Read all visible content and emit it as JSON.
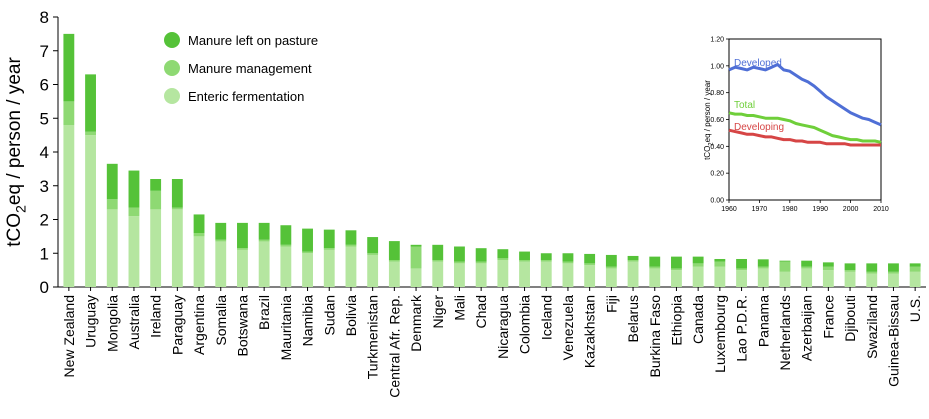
{
  "chart_data": [
    {
      "type": "bar",
      "stacked": true,
      "ylabel_main": "tCO",
      "ylabel_sub": "2",
      "ylabel_rest": "eq / person / year",
      "ylim": [
        0,
        8
      ],
      "yticks": [
        "0",
        "1",
        "2",
        "3",
        "4",
        "5",
        "6",
        "7",
        "8"
      ],
      "legend_position": "top-left",
      "categories": [
        "New Zealand",
        "Uruguay",
        "Mongolia",
        "Australia",
        "Ireland",
        "Paraguay",
        "Argentina",
        "Somalia",
        "Botswana",
        "Brazil",
        "Mauritania",
        "Namibia",
        "Sudan",
        "Bolivia",
        "Turkmenistan",
        "Central Afr. Rep.",
        "Denmark",
        "Niger",
        "Mali",
        "Chad",
        "Nicaragua",
        "Colombia",
        "Iceland",
        "Venezuela",
        "Kazakhstan",
        "Fiji",
        "Belarus",
        "Burkina Faso",
        "Ethiopia",
        "Canada",
        "Luxembourg",
        "Lao P.D.R.",
        "Panama",
        "Netherlands",
        "Azerbaijan",
        "France",
        "Djibouti",
        "Swaziland",
        "Guinea-Bissau",
        "U.S."
      ],
      "series": [
        {
          "name": "Enteric fermentation",
          "color": "#b5e6a0",
          "values": [
            4.8,
            4.5,
            2.3,
            2.1,
            2.3,
            2.3,
            1.5,
            1.35,
            1.1,
            1.35,
            1.2,
            1.0,
            1.1,
            1.2,
            0.95,
            0.75,
            0.55,
            0.75,
            0.7,
            0.7,
            0.8,
            0.75,
            0.75,
            0.7,
            0.65,
            0.55,
            0.75,
            0.55,
            0.5,
            0.6,
            0.6,
            0.5,
            0.55,
            0.45,
            0.55,
            0.5,
            0.45,
            0.4,
            0.4,
            0.45
          ]
        },
        {
          "name": "Manure management",
          "color": "#8ed973",
          "values": [
            0.7,
            0.1,
            0.3,
            0.25,
            0.55,
            0.05,
            0.1,
            0.05,
            0.05,
            0.05,
            0.05,
            0.05,
            0.05,
            0.05,
            0.05,
            0.05,
            0.65,
            0.05,
            0.05,
            0.05,
            0.05,
            0.05,
            0.05,
            0.05,
            0.05,
            0.05,
            0.05,
            0.05,
            0.05,
            0.1,
            0.15,
            0.05,
            0.05,
            0.3,
            0.05,
            0.1,
            0.05,
            0.05,
            0.05,
            0.15
          ]
        },
        {
          "name": "Manure left on pasture",
          "color": "#55c238",
          "values": [
            2.0,
            1.7,
            1.05,
            1.1,
            0.35,
            0.85,
            0.55,
            0.5,
            0.75,
            0.5,
            0.58,
            0.68,
            0.55,
            0.43,
            0.48,
            0.56,
            0.05,
            0.45,
            0.45,
            0.4,
            0.27,
            0.25,
            0.2,
            0.25,
            0.28,
            0.35,
            0.12,
            0.3,
            0.35,
            0.2,
            0.08,
            0.28,
            0.22,
            0.03,
            0.18,
            0.13,
            0.2,
            0.25,
            0.25,
            0.1
          ]
        }
      ]
    },
    {
      "type": "line",
      "ylabel_main": "tCO",
      "ylabel_sub": "2",
      "ylabel_rest": "eq / person / year",
      "xlim": [
        1960,
        2010
      ],
      "ylim": [
        0,
        1.2
      ],
      "xticks": [
        "1960",
        "1970",
        "1980",
        "1990",
        "2000",
        "2010"
      ],
      "yticks": [
        "0.00",
        "0.20",
        "0.40",
        "0.60",
        "0.80",
        "1.00",
        "1.20"
      ],
      "x": [
        1960,
        1962,
        1964,
        1966,
        1968,
        1970,
        1972,
        1974,
        1976,
        1978,
        1980,
        1982,
        1984,
        1986,
        1988,
        1990,
        1992,
        1994,
        1996,
        1998,
        2000,
        2002,
        2004,
        2006,
        2008,
        2010
      ],
      "series": [
        {
          "name": "Developed",
          "color": "#4f6fd6",
          "values": [
            0.97,
            0.99,
            0.98,
            0.97,
            0.99,
            0.98,
            0.97,
            0.99,
            1.01,
            0.97,
            0.96,
            0.93,
            0.9,
            0.88,
            0.85,
            0.81,
            0.77,
            0.74,
            0.71,
            0.68,
            0.65,
            0.63,
            0.61,
            0.6,
            0.58,
            0.56
          ]
        },
        {
          "name": "Total",
          "color": "#6fcf3a",
          "values": [
            0.65,
            0.64,
            0.64,
            0.63,
            0.63,
            0.62,
            0.61,
            0.61,
            0.61,
            0.6,
            0.59,
            0.57,
            0.56,
            0.55,
            0.54,
            0.52,
            0.5,
            0.48,
            0.47,
            0.46,
            0.45,
            0.45,
            0.44,
            0.44,
            0.44,
            0.43
          ]
        },
        {
          "name": "Developing",
          "color": "#d64545",
          "values": [
            0.52,
            0.51,
            0.5,
            0.49,
            0.49,
            0.48,
            0.47,
            0.47,
            0.46,
            0.45,
            0.45,
            0.44,
            0.44,
            0.43,
            0.43,
            0.43,
            0.42,
            0.42,
            0.42,
            0.42,
            0.41,
            0.41,
            0.41,
            0.41,
            0.41,
            0.41
          ]
        }
      ]
    }
  ]
}
